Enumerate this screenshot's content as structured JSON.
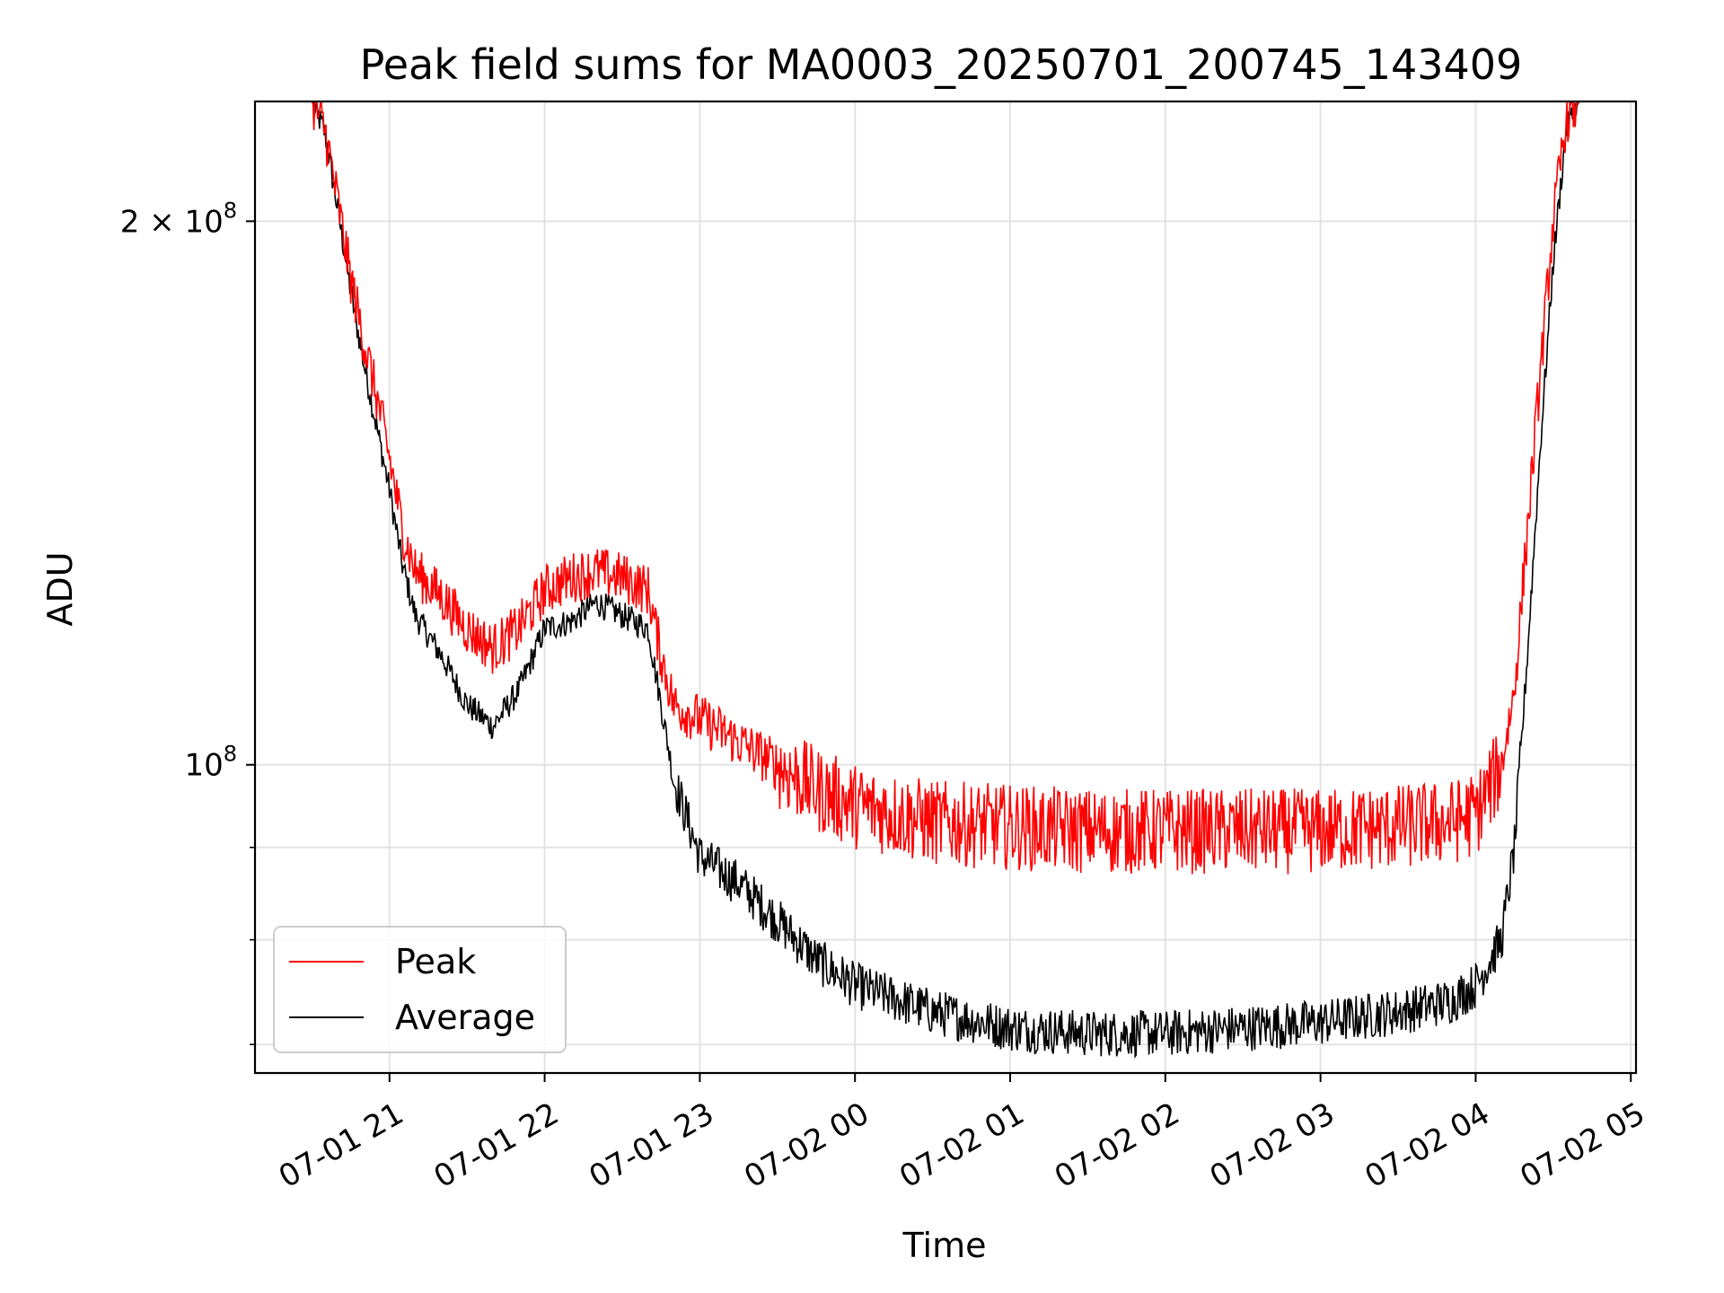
{
  "chart_data": {
    "type": "line",
    "title": "Peak field sums for MA0003_20250701_200745_143409",
    "xlabel": "Time",
    "ylabel": "ADU",
    "x_range": [
      "2025-07-01 20:08",
      "2025-07-02 05:02"
    ],
    "y_scale": "log",
    "ylim": [
      67500000,
      233000000
    ],
    "x_ticks": [
      "07-01 21",
      "07-01 22",
      "07-01 23",
      "07-02 00",
      "07-02 01",
      "07-02 02",
      "07-02 03",
      "07-02 04",
      "07-02 05"
    ],
    "y_ticks": [
      {
        "value": 200000000,
        "label": "2 × 10^8",
        "base": "2 × 10",
        "exp": "8"
      },
      {
        "value": 100000000,
        "label": "10^8",
        "base": "10",
        "exp": "8"
      }
    ],
    "y_minor_ticks": [
      70000000,
      80000000,
      90000000
    ],
    "grid": true,
    "legend_position": "lower-left",
    "series": [
      {
        "name": "Peak",
        "color": "#ff0000",
        "points": [
          [
            "2025-07-01 20:08",
            233000000
          ],
          [
            "2025-07-01 20:30",
            233000000
          ],
          [
            "2025-07-01 20:35",
            225000000
          ],
          [
            "2025-07-01 20:40",
            205000000
          ],
          [
            "2025-07-01 20:45",
            186000000
          ],
          [
            "2025-07-01 20:50",
            172000000
          ],
          [
            "2025-07-01 20:55",
            160000000
          ],
          [
            "2025-07-01 21:00",
            148000000
          ],
          [
            "2025-07-01 21:05",
            135000000
          ],
          [
            "2025-07-01 21:10",
            128000000
          ],
          [
            "2025-07-01 21:20",
            124000000
          ],
          [
            "2025-07-01 21:30",
            119000000
          ],
          [
            "2025-07-01 21:40",
            116000000
          ],
          [
            "2025-07-01 21:50",
            119000000
          ],
          [
            "2025-07-01 22:00",
            125000000
          ],
          [
            "2025-07-01 22:10",
            127000000
          ],
          [
            "2025-07-01 22:20",
            128000000
          ],
          [
            "2025-07-01 22:30",
            127000000
          ],
          [
            "2025-07-01 22:40",
            125000000
          ],
          [
            "2025-07-01 22:45",
            115000000
          ],
          [
            "2025-07-01 22:50",
            108000000
          ],
          [
            "2025-07-01 23:00",
            106000000
          ],
          [
            "2025-07-01 23:15",
            103000000
          ],
          [
            "2025-07-01 23:30",
            100000000
          ],
          [
            "2025-07-01 23:45",
            97000000
          ],
          [
            "2025-07-02 00:00",
            95000000
          ],
          [
            "2025-07-02 00:30",
            93000000
          ],
          [
            "2025-07-02 01:00",
            92500000
          ],
          [
            "2025-07-02 01:30",
            92000000
          ],
          [
            "2025-07-02 02:00",
            92000000
          ],
          [
            "2025-07-02 02:30",
            92000000
          ],
          [
            "2025-07-02 03:00",
            92000000
          ],
          [
            "2025-07-02 03:30",
            92500000
          ],
          [
            "2025-07-02 03:50",
            93000000
          ],
          [
            "2025-07-02 04:00",
            94000000
          ],
          [
            "2025-07-02 04:10",
            100000000
          ],
          [
            "2025-07-02 04:15",
            110000000
          ],
          [
            "2025-07-02 04:20",
            135000000
          ],
          [
            "2025-07-02 04:25",
            165000000
          ],
          [
            "2025-07-02 04:30",
            200000000
          ],
          [
            "2025-07-02 04:35",
            228000000
          ],
          [
            "2025-07-02 04:40",
            233000000
          ],
          [
            "2025-07-02 05:02",
            233000000
          ]
        ]
      },
      {
        "name": "Average",
        "color": "#000000",
        "points": [
          [
            "2025-07-01 20:08",
            233000000
          ],
          [
            "2025-07-01 20:30",
            233000000
          ],
          [
            "2025-07-01 20:35",
            224000000
          ],
          [
            "2025-07-01 20:40",
            203000000
          ],
          [
            "2025-07-01 20:45",
            183000000
          ],
          [
            "2025-07-01 20:50",
            167000000
          ],
          [
            "2025-07-01 20:55",
            154000000
          ],
          [
            "2025-07-01 21:00",
            142000000
          ],
          [
            "2025-07-01 21:05",
            129000000
          ],
          [
            "2025-07-01 21:10",
            121000000
          ],
          [
            "2025-07-01 21:20",
            115000000
          ],
          [
            "2025-07-01 21:30",
            108000000
          ],
          [
            "2025-07-01 21:40",
            105000000
          ],
          [
            "2025-07-01 21:50",
            110000000
          ],
          [
            "2025-07-01 22:00",
            119000000
          ],
          [
            "2025-07-01 22:10",
            120000000
          ],
          [
            "2025-07-01 22:20",
            123000000
          ],
          [
            "2025-07-01 22:30",
            121000000
          ],
          [
            "2025-07-01 22:40",
            119000000
          ],
          [
            "2025-07-01 22:45",
            108000000
          ],
          [
            "2025-07-01 22:50",
            98000000
          ],
          [
            "2025-07-01 23:00",
            89000000
          ],
          [
            "2025-07-01 23:15",
            86000000
          ],
          [
            "2025-07-01 23:30",
            82000000
          ],
          [
            "2025-07-01 23:45",
            78000000
          ],
          [
            "2025-07-02 00:00",
            75500000
          ],
          [
            "2025-07-02 00:30",
            73000000
          ],
          [
            "2025-07-02 01:00",
            71500000
          ],
          [
            "2025-07-02 01:30",
            71000000
          ],
          [
            "2025-07-02 02:00",
            71000000
          ],
          [
            "2025-07-02 02:30",
            71500000
          ],
          [
            "2025-07-02 03:00",
            72000000
          ],
          [
            "2025-07-02 03:30",
            73000000
          ],
          [
            "2025-07-02 03:50",
            74000000
          ],
          [
            "2025-07-02 04:00",
            75500000
          ],
          [
            "2025-07-02 04:10",
            80000000
          ],
          [
            "2025-07-02 04:15",
            90000000
          ],
          [
            "2025-07-02 04:20",
            115000000
          ],
          [
            "2025-07-02 04:25",
            150000000
          ],
          [
            "2025-07-02 04:30",
            190000000
          ],
          [
            "2025-07-02 04:35",
            225000000
          ],
          [
            "2025-07-02 04:40",
            233000000
          ],
          [
            "2025-07-02 05:02",
            233000000
          ]
        ]
      }
    ]
  }
}
